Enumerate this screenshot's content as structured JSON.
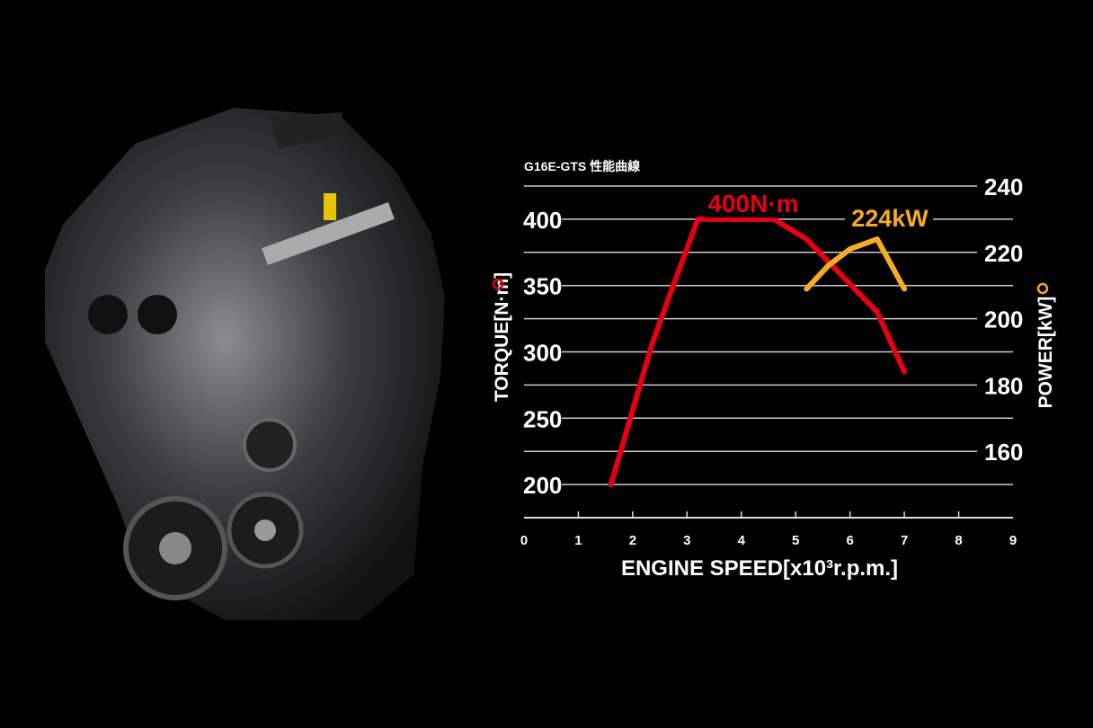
{
  "chart_data": {
    "type": "line",
    "title": "G16E-GTS 性能曲線",
    "xlabel": "ENGINE SPEED[x10³r.p.m.]",
    "ylabel_left": "TORQUE[N·m]",
    "ylabel_right": "POWER[kW]",
    "xlim": [
      0,
      9
    ],
    "ylim_left": [
      175,
      425
    ],
    "ylim_right": [
      140,
      240
    ],
    "x_ticks": [
      "0",
      "1",
      "2",
      "3",
      "4",
      "5",
      "6",
      "7",
      "8",
      "9"
    ],
    "y_ticks_left": [
      "200",
      "250",
      "300",
      "350",
      "400"
    ],
    "y_ticks_right": [
      "160",
      "180",
      "200",
      "220",
      "240"
    ],
    "grid": true,
    "series": [
      {
        "name": "TORQUE[N·m]",
        "axis": "left",
        "color": "#e60012",
        "x": [
          1.6,
          2.35,
          2.7,
          3.2,
          4.6,
          5.2,
          6.5,
          7.0
        ],
        "y": [
          200,
          305,
          345,
          400,
          400,
          385,
          330,
          285
        ],
        "annotation": "400N·m"
      },
      {
        "name": "POWER[kW]",
        "axis": "right",
        "color": "#f5ab25",
        "x": [
          5.2,
          5.6,
          6.0,
          6.5,
          7.0
        ],
        "y": [
          209,
          216,
          221,
          224,
          209
        ],
        "annotation": "224kW"
      }
    ]
  }
}
